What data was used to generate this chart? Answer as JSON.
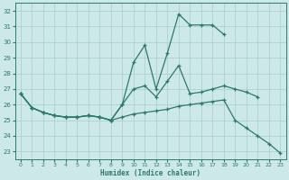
{
  "xlabel": "Humidex (Indice chaleur)",
  "xlim": [
    -0.5,
    23.5
  ],
  "ylim": [
    22.5,
    32.5
  ],
  "yticks": [
    23,
    24,
    25,
    26,
    27,
    28,
    29,
    30,
    31,
    32
  ],
  "xticks": [
    0,
    1,
    2,
    3,
    4,
    5,
    6,
    7,
    8,
    9,
    10,
    11,
    12,
    13,
    14,
    15,
    16,
    17,
    18,
    19,
    20,
    21,
    22,
    23
  ],
  "bg_color": "#cde8e8",
  "grid_color": "#a8cccc",
  "line_color": "#2a7a6a",
  "line_top_x": [
    0,
    1,
    2,
    3,
    4,
    5,
    6,
    7,
    8,
    9,
    10,
    11,
    12,
    13,
    14,
    15,
    16,
    17,
    18
  ],
  "line_top_y": [
    26.7,
    25.8,
    25.5,
    25.3,
    25.2,
    25.2,
    25.3,
    25.2,
    25.0,
    26.0,
    28.7,
    29.8,
    27.0,
    29.3,
    31.8,
    31.1,
    31.1,
    31.1,
    30.5
  ],
  "line_mid_x": [
    0,
    1,
    2,
    3,
    4,
    5,
    6,
    7,
    8,
    9,
    10,
    11,
    12,
    13,
    14,
    15,
    16,
    17,
    18,
    19,
    20,
    21
  ],
  "line_mid_y": [
    26.7,
    25.8,
    25.5,
    25.3,
    25.2,
    25.2,
    25.3,
    25.2,
    25.0,
    26.0,
    27.0,
    27.2,
    26.5,
    27.5,
    28.5,
    26.7,
    26.8,
    27.0,
    27.2,
    27.0,
    26.8,
    26.5
  ],
  "line_bot_x": [
    0,
    1,
    2,
    3,
    4,
    5,
    6,
    7,
    8,
    9,
    10,
    11,
    12,
    13,
    14,
    15,
    16,
    17,
    18,
    19,
    20,
    21,
    22,
    23
  ],
  "line_bot_y": [
    26.7,
    25.8,
    25.5,
    25.3,
    25.2,
    25.2,
    25.3,
    25.2,
    25.0,
    25.2,
    25.4,
    25.5,
    25.6,
    25.7,
    25.9,
    26.0,
    26.1,
    26.2,
    26.3,
    25.0,
    24.5,
    24.0,
    23.5,
    22.9
  ],
  "figsize": [
    3.2,
    2.0
  ],
  "dpi": 100
}
